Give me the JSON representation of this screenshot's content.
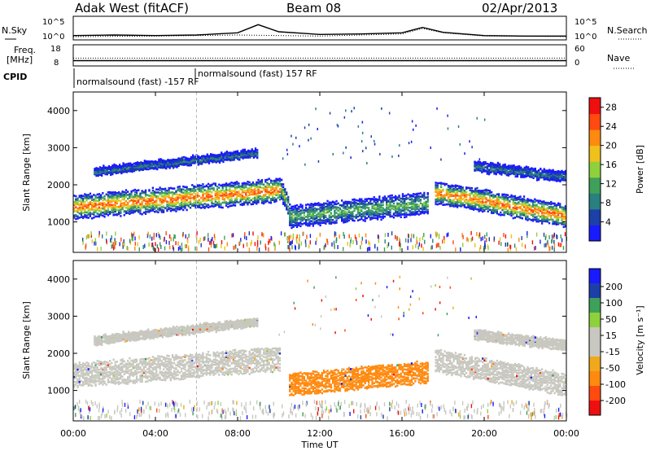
{
  "header": {
    "station": "Adak West (fitACF)",
    "beam": "Beam 08",
    "date": "02/Apr/2013"
  },
  "top_labels": {
    "nsky": "N.Sky",
    "nsearch": "N.Search",
    "freq": "Freq.",
    "freq_unit": "[MHz]",
    "nave": "Nave",
    "cpid": "CPID"
  },
  "cpid_segments": [
    {
      "label": "normalsound (fast) -157 RF",
      "start_hour": 0.0
    },
    {
      "label": "normalsound (fast) 157 RF",
      "start_hour": 6.0
    }
  ],
  "colors": {
    "power_scale": [
      "#1a1aff",
      "#1c3fa8",
      "#2a7f80",
      "#3fa05a",
      "#8fd13c",
      "#f0c01c",
      "#ff8a10",
      "#ff4a10",
      "#ee1010"
    ],
    "velocity_scale": [
      "#ee1010",
      "#ff4a10",
      "#ff8a10",
      "#f0a81c",
      "#c8c8c0",
      "#c8c8c0",
      "#8fd13c",
      "#3fa05a",
      "#1c3fa8",
      "#1a1aff"
    ]
  },
  "chart_data": [
    {
      "type": "line",
      "name": "noise-sky-search",
      "x_unit": "hour UT",
      "left_ticks": [
        "10^5",
        "10^0"
      ],
      "right_ticks": [
        "10^5",
        "10^0"
      ],
      "series": [
        {
          "name": "N.Sky",
          "x": [
            0,
            2,
            4,
            6,
            8,
            9,
            10,
            12,
            14,
            16,
            17,
            18,
            20,
            22,
            24
          ],
          "values": [
            1.5,
            1.6,
            1.5,
            1.6,
            2.0,
            3.5,
            2.2,
            1.7,
            1.8,
            2.0,
            3.0,
            2.1,
            1.5,
            1.4,
            1.4
          ]
        },
        {
          "name": "N.Search",
          "x": [
            0,
            4,
            8,
            12,
            16,
            17,
            18,
            20,
            24
          ],
          "values": [
            1.3,
            1.4,
            1.6,
            1.4,
            1.8,
            2.8,
            2.0,
            1.4,
            1.3
          ]
        }
      ]
    },
    {
      "type": "line",
      "name": "frequency-nave",
      "left_ticks": [
        "18",
        "8"
      ],
      "right_ticks": [
        "60",
        "0"
      ],
      "series": [
        {
          "name": "Freq.",
          "x": [
            0,
            24
          ],
          "values": [
            10.5,
            10.5
          ]
        },
        {
          "name": "Nave",
          "x": [
            0,
            24
          ],
          "values": [
            20,
            20
          ]
        }
      ]
    },
    {
      "type": "heatmap",
      "name": "power",
      "xlabel": "",
      "ylabel": "Slant Range [km]",
      "ylim": [
        180,
        4500
      ],
      "xlim": [
        0,
        24
      ],
      "yticks": [
        1000,
        2000,
        3000,
        4000
      ],
      "colorbar_label": "Power [dB]",
      "colorbar_ticks": [
        4,
        8,
        12,
        16,
        20,
        24,
        28
      ],
      "colorbar_range": [
        0,
        30
      ],
      "echo_bands": [
        {
          "t0": 0.0,
          "t1": 10.1,
          "r_start": 1400,
          "r_end": 1850,
          "width": 600,
          "strength": 0.85
        },
        {
          "t0": 10.1,
          "t1": 10.5,
          "r_start": 1850,
          "r_end": 1400,
          "width": 500,
          "strength": 0.55
        },
        {
          "t0": 10.5,
          "t1": 17.3,
          "r_start": 1150,
          "r_end": 1500,
          "width": 550,
          "strength": 0.45
        },
        {
          "t0": 17.6,
          "t1": 24.0,
          "r_start": 1800,
          "r_end": 1150,
          "width": 550,
          "strength": 0.85
        },
        {
          "t0": 1.0,
          "t1": 9.0,
          "r_start": 2350,
          "r_end": 2850,
          "width": 200,
          "strength": 0.3
        },
        {
          "t0": 19.5,
          "t1": 24.0,
          "r_start": 2500,
          "r_end": 2200,
          "width": 250,
          "strength": 0.3
        }
      ]
    },
    {
      "type": "heatmap",
      "name": "velocity",
      "xlabel": "Time UT",
      "ylabel": "Slant Range [km]",
      "ylim": [
        180,
        4500
      ],
      "xlim": [
        0,
        24
      ],
      "yticks": [
        1000,
        2000,
        3000,
        4000
      ],
      "xticks": [
        "00:00",
        "04:00",
        "08:00",
        "12:00",
        "16:00",
        "20:00",
        "00:00"
      ],
      "colorbar_label": "Velocity [m s⁻¹]",
      "colorbar_ticks": [
        200,
        100,
        50,
        15,
        -15,
        -50,
        -100,
        -200
      ],
      "echo_bands": [
        {
          "t0": 0.0,
          "t1": 10.1,
          "r_start": 1400,
          "r_end": 1850,
          "width": 600,
          "velocity": 0
        },
        {
          "t0": 10.5,
          "t1": 17.3,
          "r_start": 1150,
          "r_end": 1500,
          "width": 550,
          "velocity": -60
        },
        {
          "t0": 17.6,
          "t1": 24.0,
          "r_start": 1800,
          "r_end": 1150,
          "width": 550,
          "velocity": 0
        },
        {
          "t0": 1.0,
          "t1": 9.0,
          "r_start": 2350,
          "r_end": 2850,
          "width": 200,
          "velocity": 0
        },
        {
          "t0": 19.5,
          "t1": 24.0,
          "r_start": 2500,
          "r_end": 2200,
          "width": 250,
          "velocity": 0
        }
      ]
    }
  ]
}
